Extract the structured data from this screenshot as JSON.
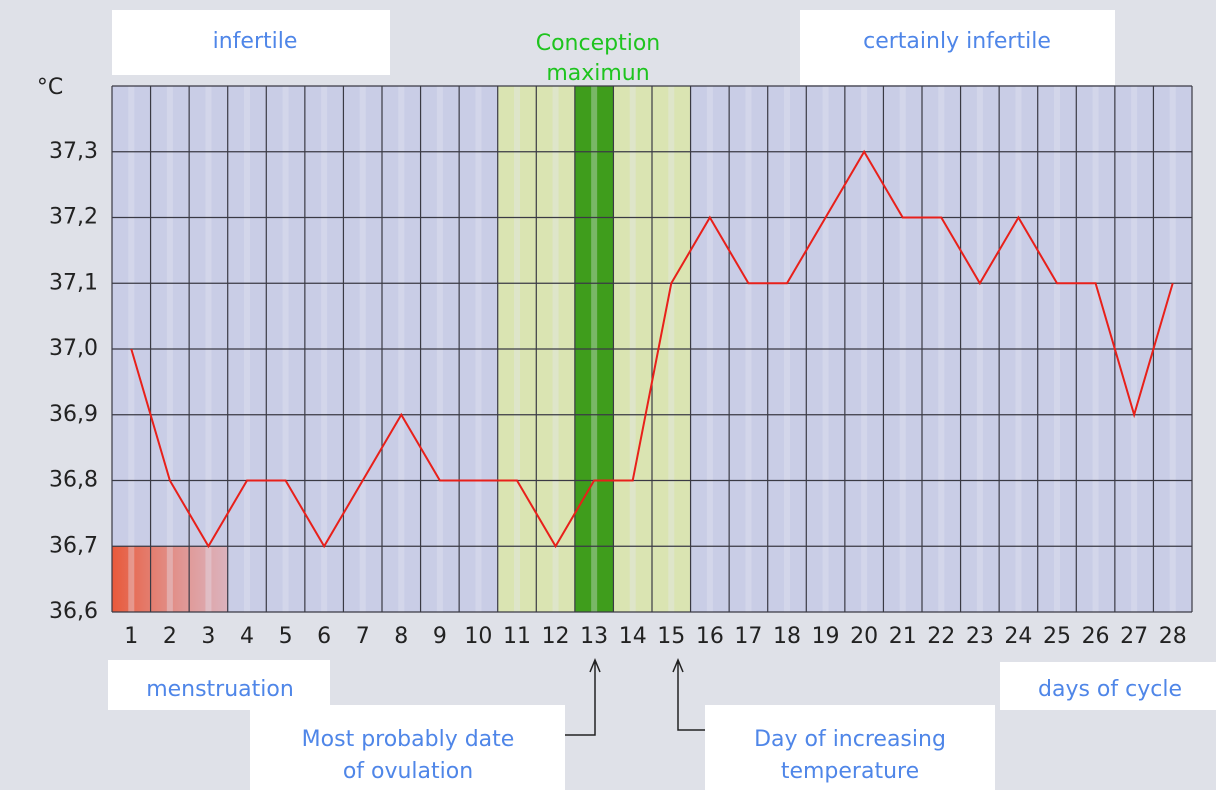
{
  "chart_data": {
    "type": "line",
    "y_label": "°C",
    "x_label": "days of cycle",
    "annotations": {
      "infertile": "infertile",
      "conception": [
        "Conception",
        "maximun"
      ],
      "certainly_infertile": "certainly infertile",
      "menstruation": "menstruation",
      "ovulation": [
        "Most probably date",
        "of ovulation"
      ],
      "increase": [
        "Day of increasing",
        "temperature"
      ]
    },
    "categories": [
      "1",
      "2",
      "3",
      "4",
      "5",
      "6",
      "7",
      "8",
      "9",
      "10",
      "11",
      "12",
      "13",
      "14",
      "15",
      "16",
      "17",
      "18",
      "19",
      "20",
      "21",
      "22",
      "23",
      "24",
      "25",
      "26",
      "27",
      "28"
    ],
    "series": [
      {
        "name": null,
        "color": "#e8201a",
        "values": [
          37.0,
          36.8,
          36.7,
          36.8,
          36.8,
          36.7,
          36.8,
          36.9,
          36.8,
          36.8,
          36.8,
          36.7,
          36.8,
          36.8,
          37.1,
          37.2,
          37.1,
          37.1,
          37.2,
          37.3,
          37.2,
          37.2,
          37.1,
          37.2,
          37.1,
          37.1,
          36.9,
          37.1
        ]
      }
    ],
    "ylim": [
      36.6,
      37.4
    ],
    "yticks": [
      {
        "value": 36.6,
        "label": "36,6"
      },
      {
        "value": 36.7,
        "label": "36,7"
      },
      {
        "value": 36.8,
        "label": "36,8"
      },
      {
        "value": 36.9,
        "label": "36,9"
      },
      {
        "value": 37.0,
        "label": "37,0"
      },
      {
        "value": 37.1,
        "label": "37,1"
      },
      {
        "value": 37.2,
        "label": "37,2"
      },
      {
        "value": 37.3,
        "label": "37,3"
      }
    ],
    "grid": true
  }
}
